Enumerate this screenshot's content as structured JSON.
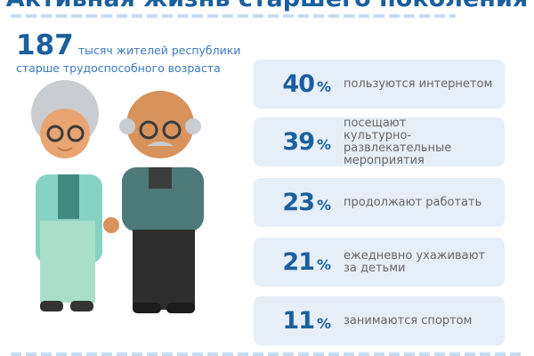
{
  "title": "Активная жизнь старшего поколения",
  "lead": {
    "number": "187",
    "text1": "тысяч жителей республики",
    "text2": "старше трудоспособного возраста"
  },
  "stats": [
    {
      "value": "40",
      "unit": "%",
      "label": "пользуются интернетом"
    },
    {
      "value": "39",
      "unit": "%",
      "label": "посещают культурно-развлекательные мероприятия"
    },
    {
      "value": "23",
      "unit": "%",
      "label": "продолжают работать"
    },
    {
      "value": "21",
      "unit": "%",
      "label": "ежедневно ухаживают за детьми"
    },
    {
      "value": "11",
      "unit": "%",
      "label": "занимаются спортом"
    }
  ],
  "colors": {
    "accent": "#1a5f9e",
    "card": "#e6eef8",
    "dash": "#c6dcf0"
  }
}
